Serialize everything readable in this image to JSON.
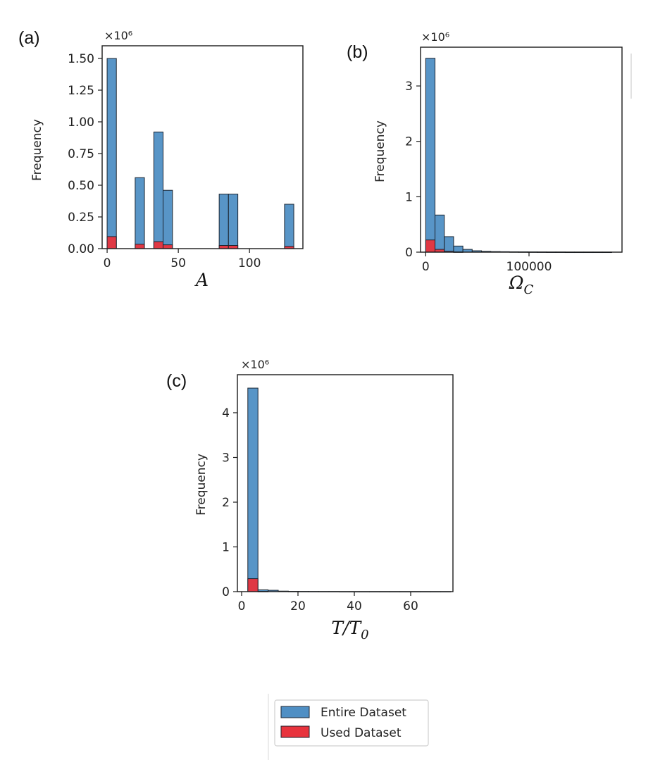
{
  "colors": {
    "entire": "#4f8fc4",
    "used": "#e8333d",
    "edge": "#1c2530",
    "axis": "#1a1a1a"
  },
  "chart_data": [
    {
      "type": "bar",
      "panel_label": "(a)",
      "multiplier": "×10⁶",
      "ylabel": "Frequency",
      "xlabel": "A",
      "xlim": [
        -3.5,
        137.5
      ],
      "ylim": [
        0,
        1.6
      ],
      "xticks": [
        0,
        50,
        100
      ],
      "xtick_labels": [
        "0",
        "50",
        "100"
      ],
      "yticks": [
        0,
        0.25,
        0.5,
        0.75,
        1.0,
        1.25,
        1.5
      ],
      "ytick_labels": [
        "0.00",
        "0.25",
        "0.50",
        "0.75",
        "1.00",
        "1.25",
        "1.50"
      ],
      "series": [
        {
          "name": "Entire Dataset",
          "bins": [
            [
              0,
              6.5
            ],
            [
              19.7,
              26.2
            ],
            [
              32.8,
              39.3
            ],
            [
              39.3,
              45.9
            ],
            [
              78.7,
              85.2
            ],
            [
              85.2,
              91.8
            ],
            [
              124.6,
              131.1
            ]
          ],
          "values": [
            1.5,
            0.56,
            0.92,
            0.46,
            0.43,
            0.43,
            0.35
          ]
        },
        {
          "name": "Used Dataset",
          "bins": [
            [
              0,
              6.5
            ],
            [
              19.7,
              26.2
            ],
            [
              32.8,
              39.3
            ],
            [
              39.3,
              45.9
            ],
            [
              78.7,
              85.2
            ],
            [
              85.2,
              91.8
            ],
            [
              124.6,
              131.1
            ]
          ],
          "values": [
            0.095,
            0.035,
            0.055,
            0.03,
            0.025,
            0.025,
            0.018
          ]
        }
      ]
    },
    {
      "type": "bar",
      "panel_label": "(b)",
      "multiplier": "×10⁶",
      "ylabel": "Frequency",
      "xlabel": "Ω",
      "xlabel_sub": "C",
      "xlim": [
        -5000,
        190000
      ],
      "ylim": [
        0,
        3.7
      ],
      "xticks": [
        0,
        100000
      ],
      "xtick_labels": [
        "0",
        "100000"
      ],
      "yticks": [
        0,
        1,
        2,
        3
      ],
      "ytick_labels": [
        "0",
        "1",
        "2",
        "3"
      ],
      "series": [
        {
          "name": "Entire Dataset",
          "bins": [
            [
              0,
              9000
            ],
            [
              9000,
              18000
            ],
            [
              18000,
              27000
            ],
            [
              27000,
              36000
            ],
            [
              36000,
              45000
            ],
            [
              45000,
              54000
            ],
            [
              54000,
              63000
            ],
            [
              63000,
              72000
            ],
            [
              72000,
              81000
            ],
            [
              81000,
              90000
            ],
            [
              90000,
              99000
            ],
            [
              99000,
              108000
            ],
            [
              108000,
              117000
            ],
            [
              117000,
              126000
            ],
            [
              126000,
              135000
            ],
            [
              135000,
              144000
            ],
            [
              144000,
              153000
            ],
            [
              153000,
              162000
            ],
            [
              162000,
              171000
            ],
            [
              171000,
              180000
            ]
          ],
          "values": [
            3.5,
            0.67,
            0.28,
            0.11,
            0.05,
            0.025,
            0.015,
            0.01,
            0.008,
            0.006,
            0.005,
            0.004,
            0.003,
            0.002,
            0.002,
            0.001,
            0.001,
            0.001,
            0.001,
            0.001
          ]
        },
        {
          "name": "Used Dataset",
          "bins": [
            [
              0,
              9000
            ],
            [
              9000,
              18000
            ],
            [
              18000,
              27000
            ],
            [
              27000,
              36000
            ]
          ],
          "values": [
            0.22,
            0.05,
            0.015,
            0.004
          ]
        }
      ]
    },
    {
      "type": "bar",
      "panel_label": "(c)",
      "multiplier": "×10⁶",
      "ylabel": "Frequency",
      "xlabel": "T/T",
      "xlabel_sub": "0",
      "xlim": [
        -1.5,
        75
      ],
      "ylim": [
        0,
        4.85
      ],
      "xticks": [
        0,
        20,
        40,
        60
      ],
      "xtick_labels": [
        "0",
        "20",
        "40",
        "60"
      ],
      "yticks": [
        0,
        1,
        2,
        3,
        4
      ],
      "ytick_labels": [
        "0",
        "1",
        "2",
        "3",
        "4"
      ],
      "series": [
        {
          "name": "Entire Dataset",
          "bins": [
            [
              2.2,
              5.8
            ],
            [
              5.8,
              9.4
            ],
            [
              9.4,
              13.0
            ],
            [
              13.0,
              16.6
            ],
            [
              16.6,
              20.2
            ],
            [
              20.2,
              23.8
            ],
            [
              23.8,
              27.4
            ],
            [
              27.4,
              31.0
            ],
            [
              31.0,
              34.6
            ],
            [
              34.6,
              38.2
            ],
            [
              38.2,
              41.8
            ],
            [
              41.8,
              45.4
            ],
            [
              45.4,
              49.0
            ],
            [
              49.0,
              52.6
            ],
            [
              52.6,
              56.2
            ],
            [
              56.2,
              59.8
            ],
            [
              59.8,
              63.4
            ],
            [
              63.4,
              67.0
            ],
            [
              67.0,
              70.6
            ],
            [
              70.6,
              74.2
            ]
          ],
          "values": [
            4.55,
            0.04,
            0.03,
            0.012,
            0.006,
            0.004,
            0.003,
            0.002,
            0.002,
            0.001,
            0.001,
            0.001,
            0.001,
            0.001,
            0.001,
            0.001,
            0.001,
            0.001,
            0.001,
            0.001
          ]
        },
        {
          "name": "Used Dataset",
          "bins": [
            [
              2.2,
              5.8
            ],
            [
              5.8,
              9.4
            ]
          ],
          "values": [
            0.29,
            0.005
          ]
        }
      ]
    }
  ],
  "legend": {
    "entries": [
      {
        "label": "Entire Dataset",
        "color_key": "entire"
      },
      {
        "label": "Used Dataset",
        "color_key": "used"
      }
    ]
  }
}
